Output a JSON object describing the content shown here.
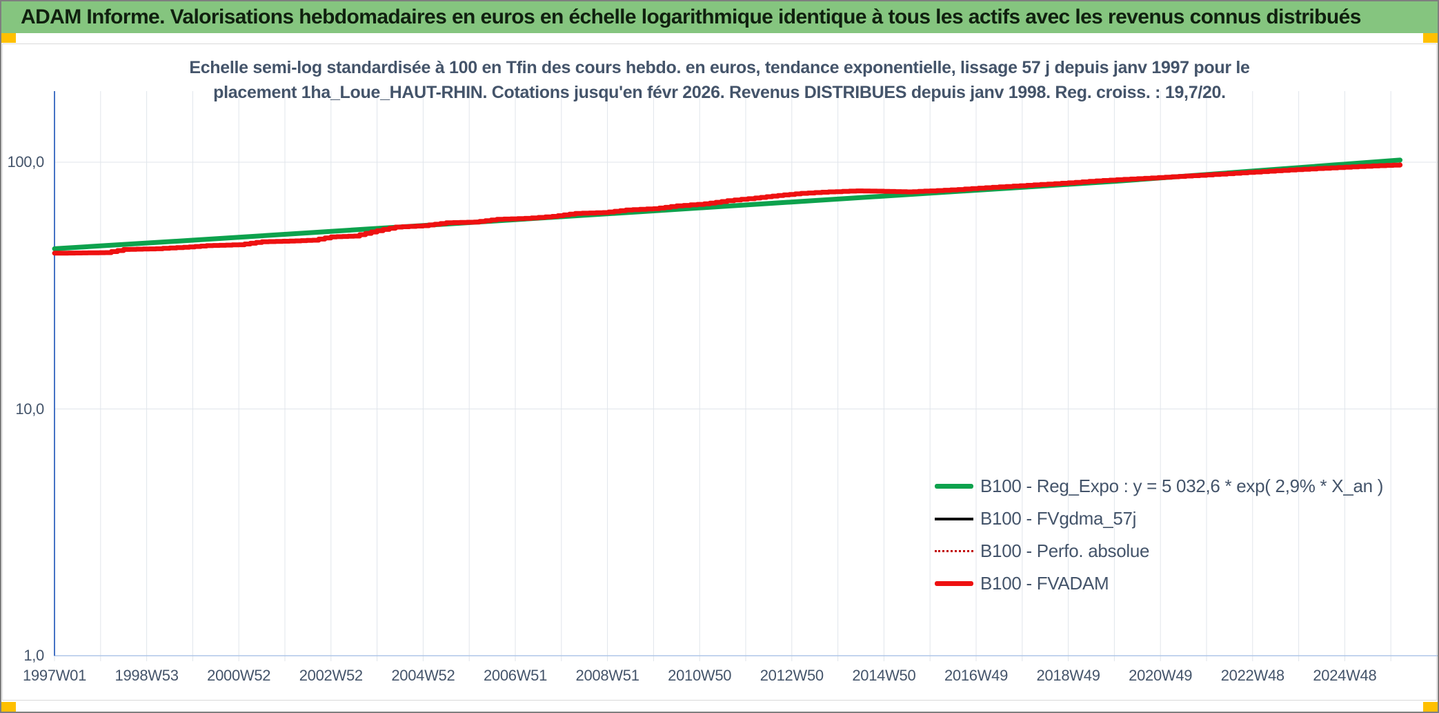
{
  "header": {
    "title": "ADAM Informe. Valorisations hebdomadaires en euros en échelle logarithmique identique à tous les actifs avec les revenus connus distribués"
  },
  "colors": {
    "header_green": "#85c57f",
    "header_text": "#10200f",
    "accent_yellow": "#ffc000",
    "text_slate": "#44546a",
    "axis_spine_blue": "#4472c4",
    "axis_bottom_line": "#aec6e8",
    "gridline": "#e0e5eb",
    "green_line": "#0da24d",
    "red_line": "#ee1111",
    "dark_red_dotted": "#c00000",
    "black_line": "#000000",
    "frame_gray": "#d9d9d9"
  },
  "chart_data": {
    "type": "line",
    "y_scale": "log",
    "title_line1": "Echelle semi-log standardisée à 100 en Tfin des cours hebdo. en euros, tendance exponentielle, lissage 57 j depuis janv 1997 pour le",
    "title_line2": "placement 1ha_Loue_HAUT-RHIN. Cotations jusqu'en févr 2026. Revenus DISTRIBUES depuis janv 1998. Reg. croiss. : 19,7/20.",
    "ylim": [
      1,
      200
    ],
    "y_ticks": [
      {
        "label": "100,0",
        "value": 100
      },
      {
        "label": "10,0",
        "value": 10
      },
      {
        "label": "1,0",
        "value": 1
      }
    ],
    "x_tick_labels": [
      "1997W01",
      "1998W53",
      "2000W52",
      "2002W52",
      "2004W52",
      "2006W51",
      "2008W51",
      "2010W50",
      "2012W50",
      "2014W50",
      "2016W49",
      "2018W49",
      "2020W49",
      "2022W48",
      "2024W48"
    ],
    "x_label_interval_years": 2,
    "x_gridline_interval_years": 1,
    "x_start_year": 1997.0,
    "x_end_year": 2026.3,
    "grid": true,
    "legend_position": "inside-bottom-right",
    "legend": [
      {
        "label": "B100 - Reg_Expo : y = 5 032,6 * exp( 2,9% *  X_an )",
        "color": "#0da24d",
        "style": "thick"
      },
      {
        "label": "B100 - FVgdma_57j",
        "color": "#000000",
        "style": "thin"
      },
      {
        "label": "B100 - Perfo. absolue",
        "color": "#c00000",
        "style": "dotted"
      },
      {
        "label": "B100 - FVADAM",
        "color": "#ee1111",
        "style": "thick"
      }
    ],
    "series": [
      {
        "name": "B100 - Reg_Expo",
        "color": "#0da24d",
        "width": 7,
        "step": false,
        "points": [
          [
            1997.0,
            44.6
          ],
          [
            2000.0,
            48.3
          ],
          [
            2005.0,
            55.4
          ],
          [
            2010.0,
            63.5
          ],
          [
            2015.0,
            72.9
          ],
          [
            2020.0,
            83.6
          ],
          [
            2026.2,
            102.0
          ]
        ]
      },
      {
        "name": "B100 - FVgdma_57j",
        "color": "#000000",
        "width": 3,
        "step": true,
        "points_ref": "fvadam",
        "note": "coincides with FVADAM, hidden beneath it"
      },
      {
        "name": "B100 - Perfo. absolue",
        "color": "#c00000",
        "width": 2,
        "dash": "2 4",
        "step": true,
        "points_ref": "fvadam",
        "note": "coincides with FVADAM, hidden beneath it"
      },
      {
        "id": "fvadam",
        "name": "B100 - FVADAM",
        "color": "#ee1111",
        "width": 7,
        "step": true,
        "points": [
          [
            1997.0,
            42.8
          ],
          [
            1997.6,
            42.9
          ],
          [
            1998.1,
            43.0
          ],
          [
            1998.5,
            44.3
          ],
          [
            1999.2,
            44.6
          ],
          [
            1999.8,
            45.2
          ],
          [
            2000.3,
            45.9
          ],
          [
            2001.0,
            46.3
          ],
          [
            2001.5,
            47.6
          ],
          [
            2002.1,
            47.9
          ],
          [
            2002.6,
            48.3
          ],
          [
            2003.0,
            49.8
          ],
          [
            2003.5,
            50.2
          ],
          [
            2004.0,
            52.8
          ],
          [
            2004.4,
            54.6
          ],
          [
            2005.0,
            55.3
          ],
          [
            2005.5,
            56.8
          ],
          [
            2006.1,
            57.2
          ],
          [
            2006.6,
            58.7
          ],
          [
            2007.2,
            59.2
          ],
          [
            2007.8,
            60.3
          ],
          [
            2008.3,
            62.0
          ],
          [
            2008.9,
            62.5
          ],
          [
            2009.4,
            64.0
          ],
          [
            2010.0,
            64.8
          ],
          [
            2010.5,
            66.5
          ],
          [
            2011.1,
            67.8
          ],
          [
            2011.6,
            69.8
          ],
          [
            2012.2,
            71.6
          ],
          [
            2012.7,
            73.3
          ],
          [
            2013.2,
            74.8
          ],
          [
            2013.8,
            75.8
          ],
          [
            2014.4,
            76.5
          ],
          [
            2015.0,
            76.2
          ],
          [
            2015.5,
            75.8
          ],
          [
            2016.0,
            76.5
          ],
          [
            2016.6,
            77.5
          ],
          [
            2017.2,
            78.8
          ],
          [
            2017.8,
            80.0
          ],
          [
            2018.4,
            81.2
          ],
          [
            2019.0,
            82.5
          ],
          [
            2019.6,
            84.0
          ],
          [
            2020.2,
            85.2
          ],
          [
            2020.8,
            86.3
          ],
          [
            2021.4,
            87.6
          ],
          [
            2022.0,
            88.8
          ],
          [
            2022.6,
            90.2
          ],
          [
            2023.2,
            91.6
          ],
          [
            2023.8,
            93.0
          ],
          [
            2024.4,
            94.3
          ],
          [
            2025.0,
            95.4
          ],
          [
            2025.6,
            96.6
          ],
          [
            2026.2,
            97.6
          ]
        ]
      }
    ]
  }
}
